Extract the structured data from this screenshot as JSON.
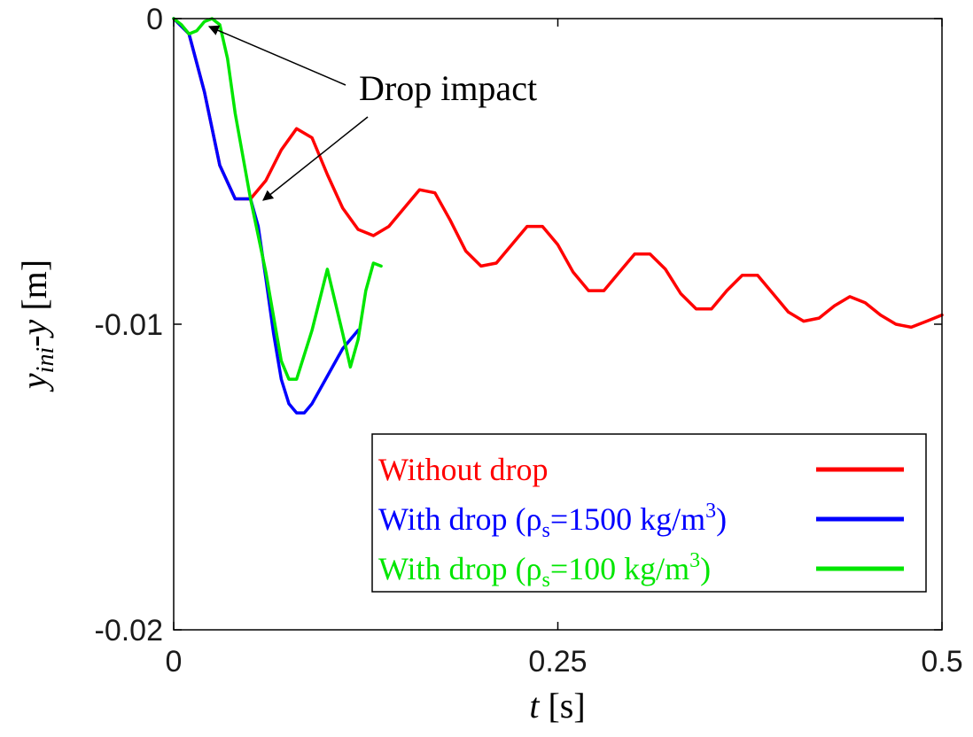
{
  "chart_data": {
    "type": "line",
    "xlabel": {
      "var": "t",
      "unit": " [s]"
    },
    "ylabel": {
      "var_main": "y",
      "var_sub": "ini",
      "var_mid": "-",
      "var_end": "y",
      "unit": " [m]"
    },
    "xlim": [
      0,
      0.5
    ],
    "ylim": [
      -0.02,
      0
    ],
    "xticks": [
      0,
      0.25,
      0.5
    ],
    "xtick_labels": [
      "0",
      "0.25",
      "0.5"
    ],
    "yticks": [
      0,
      -0.01,
      -0.02
    ],
    "ytick_labels": [
      "0",
      "-0.01",
      "-0.02"
    ],
    "grid": false,
    "legend_position": "lower-right",
    "annotation": {
      "text": "Drop impact"
    },
    "series": [
      {
        "name": "Without drop",
        "legend": {
          "pre": "Without drop",
          "sub": "",
          "mid": "",
          "sup": "",
          "post": ""
        },
        "color": "#ff0000",
        "x": [
          0,
          0.01,
          0.02,
          0.03,
          0.04,
          0.05,
          0.06,
          0.07,
          0.08,
          0.09,
          0.1,
          0.11,
          0.12,
          0.13,
          0.14,
          0.15,
          0.16,
          0.17,
          0.18,
          0.19,
          0.2,
          0.21,
          0.22,
          0.23,
          0.24,
          0.25,
          0.26,
          0.27,
          0.28,
          0.29,
          0.3,
          0.31,
          0.32,
          0.33,
          0.34,
          0.35,
          0.36,
          0.37,
          0.38,
          0.39,
          0.4,
          0.41,
          0.42,
          0.43,
          0.44,
          0.45,
          0.46,
          0.47,
          0.48,
          0.49,
          0.5
        ],
        "y": [
          0,
          -0.0005,
          -0.0024,
          -0.0048,
          -0.0059,
          -0.0059,
          -0.0053,
          -0.0043,
          -0.0036,
          -0.0039,
          -0.0051,
          -0.0062,
          -0.0069,
          -0.0071,
          -0.0068,
          -0.0062,
          -0.0056,
          -0.0057,
          -0.0066,
          -0.0076,
          -0.0081,
          -0.008,
          -0.0074,
          -0.0068,
          -0.0068,
          -0.0074,
          -0.0083,
          -0.0089,
          -0.0089,
          -0.0083,
          -0.0077,
          -0.0077,
          -0.0082,
          -0.009,
          -0.0095,
          -0.0095,
          -0.0089,
          -0.0084,
          -0.0084,
          -0.009,
          -0.0096,
          -0.0099,
          -0.0098,
          -0.0094,
          -0.0091,
          -0.0093,
          -0.0097,
          -0.01,
          -0.0101,
          -0.0099,
          -0.0097
        ]
      },
      {
        "name": "With drop (ρs=1500 kg/m3)",
        "legend": {
          "pre": "With drop (ρ",
          "sub": "s",
          "mid": "=1500 kg/m",
          "sup": "3",
          "post": ")"
        },
        "color": "#0000ff",
        "x": [
          0,
          0.01,
          0.02,
          0.03,
          0.04,
          0.05,
          0.055,
          0.06,
          0.065,
          0.07,
          0.075,
          0.08,
          0.085,
          0.09,
          0.1,
          0.11,
          0.12
        ],
        "y": [
          0,
          -0.0005,
          -0.0024,
          -0.0048,
          -0.0059,
          -0.0059,
          -0.0068,
          -0.0085,
          -0.0103,
          -0.0118,
          -0.0126,
          -0.0129,
          -0.0129,
          -0.0126,
          -0.0117,
          -0.0108,
          -0.0102
        ]
      },
      {
        "name": "With drop (ρs=100 kg/m3)",
        "legend": {
          "pre": "With drop (ρ",
          "sub": "s",
          "mid": "=100 kg/m",
          "sup": "3",
          "post": ")"
        },
        "color": "#00e600",
        "x": [
          0,
          0.005,
          0.01,
          0.015,
          0.02,
          0.025,
          0.03,
          0.035,
          0.04,
          0.05,
          0.055,
          0.06,
          0.07,
          0.075,
          0.08,
          0.09,
          0.1,
          0.11,
          0.115,
          0.12,
          0.125,
          0.13,
          0.135
        ],
        "y": [
          0,
          -0.0002,
          -0.0005,
          -0.0004,
          -0.0001,
          0,
          -0.0002,
          -0.0013,
          -0.0031,
          -0.0059,
          -0.0071,
          -0.0083,
          -0.0112,
          -0.0118,
          -0.0118,
          -0.0102,
          -0.0082,
          -0.0103,
          -0.0114,
          -0.0105,
          -0.0089,
          -0.008,
          -0.0081
        ]
      }
    ]
  }
}
